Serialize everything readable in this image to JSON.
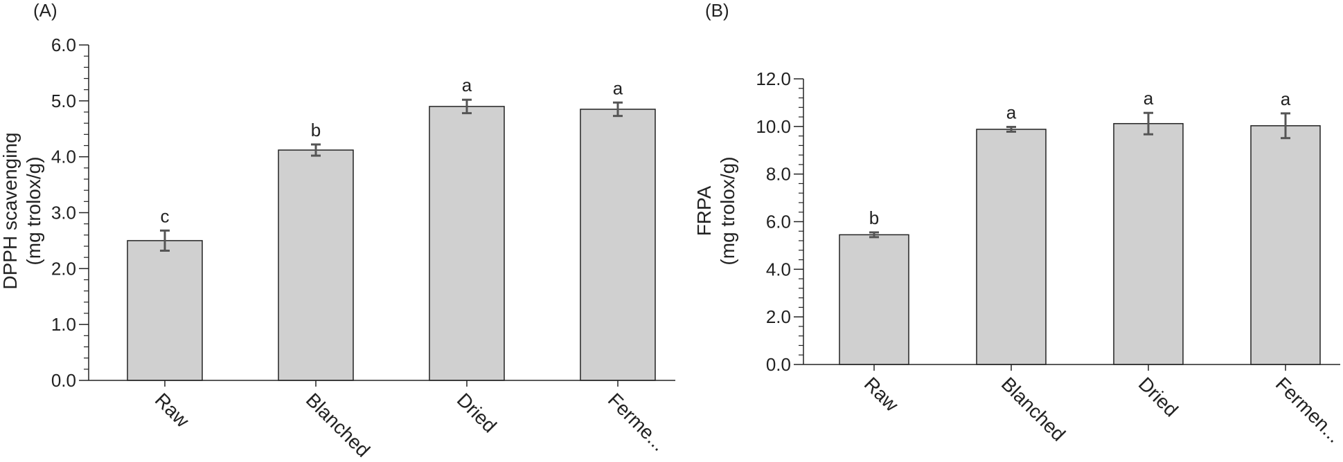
{
  "colors": {
    "bar_fill": "#d0d0d0",
    "bar_stroke": "#222222",
    "axis": "#222222",
    "error_bar": "#555555"
  },
  "chart_data": [
    {
      "type": "bar",
      "panel_label": "(A)",
      "ylabel_lines": [
        "DPPH scavenging",
        "(mg trolox/g)"
      ],
      "xlabel": "",
      "categories": [
        "Raw",
        "Blanched",
        "Dried",
        "Ferme..."
      ],
      "values": [
        2.5,
        4.12,
        4.9,
        4.85
      ],
      "errors": [
        0.18,
        0.1,
        0.12,
        0.12
      ],
      "significance": [
        "c",
        "b",
        "a",
        "a"
      ],
      "ylim": [
        0,
        6.0
      ],
      "yticks": [
        "0.0",
        "1.0",
        "2.0",
        "3.0",
        "4.0",
        "5.0",
        "6.0"
      ],
      "grid": false,
      "legend": "none"
    },
    {
      "type": "bar",
      "panel_label": "(B)",
      "ylabel_lines": [
        "FRPA",
        "(mg trolox/g)"
      ],
      "xlabel": "",
      "categories": [
        "Raw",
        "Blanched",
        "Dried",
        "Fermen..."
      ],
      "values": [
        5.45,
        9.88,
        10.12,
        10.03
      ],
      "errors": [
        0.1,
        0.1,
        0.45,
        0.52
      ],
      "significance": [
        "b",
        "a",
        "a",
        "a"
      ],
      "ylim": [
        0,
        12.0
      ],
      "yticks": [
        "0.0",
        "2.0",
        "4.0",
        "6.0",
        "8.0",
        "10.0",
        "12.0"
      ],
      "grid": false,
      "legend": "none"
    }
  ]
}
